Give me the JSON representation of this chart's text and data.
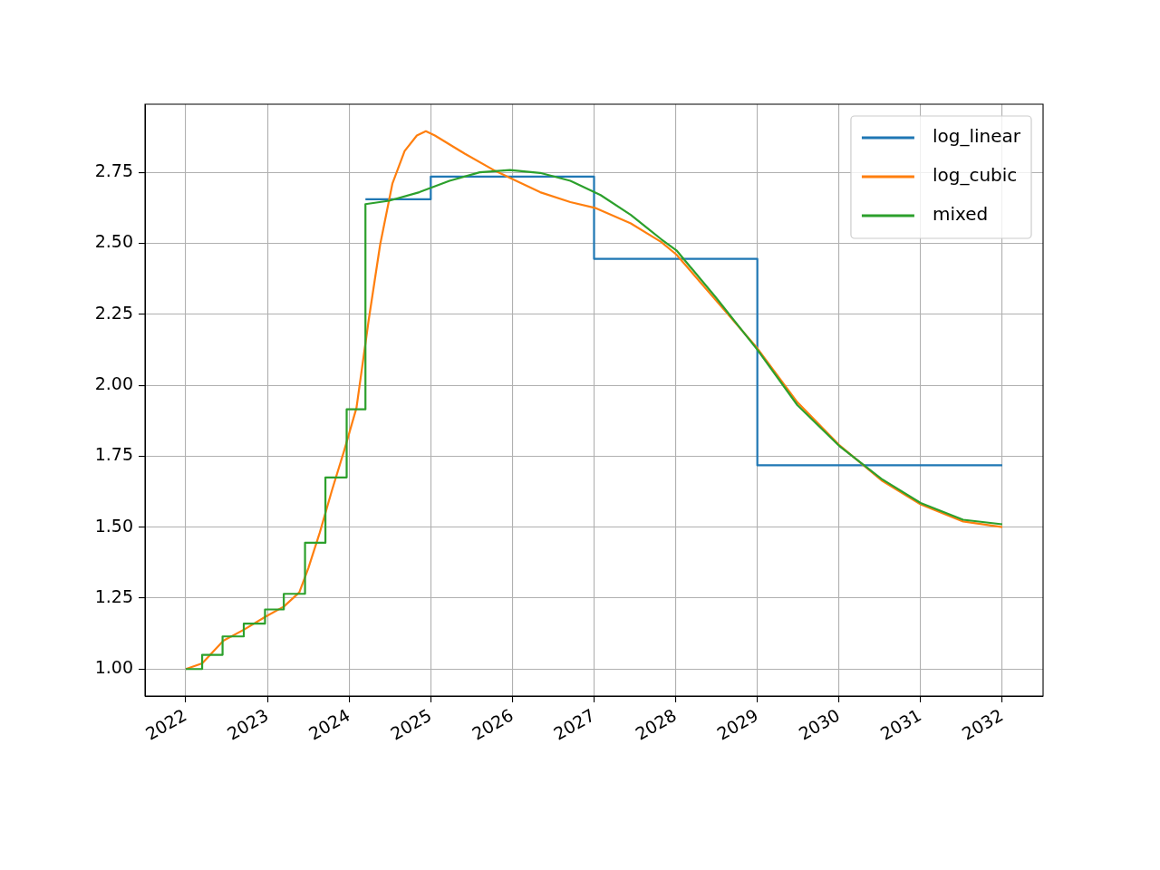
{
  "chart_data": {
    "type": "line",
    "xlim": [
      2021.5,
      2032.5
    ],
    "ylim": [
      0.905,
      2.99
    ],
    "xticks": [
      2022,
      2023,
      2024,
      2025,
      2026,
      2027,
      2028,
      2029,
      2030,
      2031,
      2032
    ],
    "yticks": [
      {
        "value": 1,
        "label": "1.00"
      },
      {
        "value": 1.25,
        "label": "1.25"
      },
      {
        "value": 1.5,
        "label": "1.50"
      },
      {
        "value": 1.75,
        "label": "1.75"
      },
      {
        "value": 2,
        "label": "2.00"
      },
      {
        "value": 2.25,
        "label": "2.25"
      },
      {
        "value": 2.5,
        "label": "2.50"
      },
      {
        "value": 2.75,
        "label": "2.75"
      }
    ],
    "grid": true,
    "legend": "top right",
    "marker": "none",
    "line_style": "solid",
    "series": [
      {
        "name": "log_linear",
        "type": "step",
        "color": "#1f77b4",
        "x": [
          2024.2,
          2025,
          2027,
          2029,
          2032
        ],
        "values": [
          2.655,
          2.735,
          2.445,
          1.718,
          1.718
        ]
      },
      {
        "name": "log_cubic",
        "type": "line",
        "color": "#ff7f0e",
        "x": [
          2022,
          2022.2,
          2022.46,
          2022.72,
          2022.98,
          2023.2,
          2023.39,
          2023.5,
          2023.64,
          2023.79,
          2023.94,
          2024.09,
          2024.24,
          2024.38,
          2024.53,
          2024.68,
          2024.83,
          2024.94,
          2025.05,
          2025.42,
          2025.79,
          2026.01,
          2026.34,
          2026.71,
          2027.01,
          2027.45,
          2027.82,
          2028.01,
          2028.49,
          2029,
          2029.49,
          2030,
          2030.52,
          2031,
          2031.52,
          2032
        ],
        "values": [
          1,
          1.02,
          1.1,
          1.14,
          1.185,
          1.22,
          1.27,
          1.355,
          1.48,
          1.63,
          1.77,
          1.92,
          2.23,
          2.495,
          2.71,
          2.825,
          2.88,
          2.895,
          2.88,
          2.815,
          2.755,
          2.725,
          2.68,
          2.645,
          2.625,
          2.57,
          2.505,
          2.46,
          2.3,
          2.13,
          1.94,
          1.79,
          1.665,
          1.58,
          1.52,
          1.5
        ]
      },
      {
        "name": "mixed",
        "type": "line",
        "color": "#2ca02c",
        "x": [
          2022,
          2022.2,
          2022.2,
          2022.45,
          2022.45,
          2022.71,
          2022.71,
          2022.97,
          2022.97,
          2023.2,
          2023.2,
          2023.46,
          2023.46,
          2023.71,
          2023.71,
          2023.97,
          2023.97,
          2024.2,
          2024.2,
          2024.49,
          2024.86,
          2025.23,
          2025.6,
          2025.97,
          2026.34,
          2026.71,
          2027.08,
          2027.45,
          2027.82,
          2028.01,
          2028.49,
          2029,
          2029.49,
          2030,
          2030.52,
          2031,
          2031.52,
          2032
        ],
        "values": [
          1,
          1,
          1.05,
          1.05,
          1.115,
          1.115,
          1.16,
          1.16,
          1.21,
          1.21,
          1.265,
          1.265,
          1.445,
          1.445,
          1.675,
          1.675,
          1.915,
          1.915,
          2.638,
          2.65,
          2.68,
          2.72,
          2.75,
          2.758,
          2.748,
          2.72,
          2.67,
          2.6,
          2.515,
          2.475,
          2.31,
          2.125,
          1.93,
          1.787,
          1.67,
          1.585,
          1.526,
          1.51
        ]
      }
    ]
  }
}
